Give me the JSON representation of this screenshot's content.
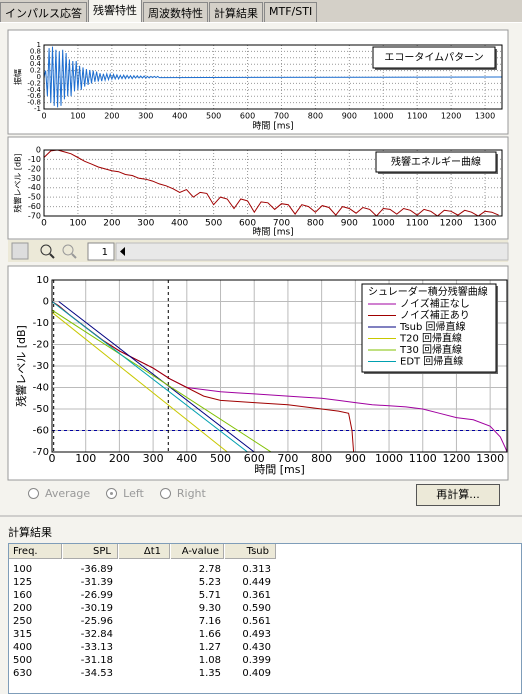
{
  "tabs": [
    "インパルス応答",
    "残響特性",
    "周波数特性",
    "計算結果",
    "MTF/STI"
  ],
  "active_tab": 1,
  "chart_data": [
    {
      "type": "line",
      "ylabel": "振幅",
      "xlabel": "時間 [ms]",
      "xlim": [
        0,
        1350
      ],
      "xticks": [
        0,
        100,
        200,
        300,
        400,
        500,
        600,
        700,
        800,
        900,
        1000,
        1100,
        1200,
        1300
      ],
      "ylim": [
        -1,
        1
      ],
      "yticks": [
        1,
        0.8,
        0.6,
        0.4,
        0.2,
        0,
        -0.2,
        -0.4,
        -0.6,
        -0.8,
        -1
      ],
      "grid": true,
      "series": [
        {
          "name": "エコータイムパターン",
          "color": "#1f6fd0",
          "x": [
            0,
            5,
            10,
            15,
            20,
            25,
            30,
            35,
            40,
            45,
            50,
            55,
            60,
            65,
            70,
            75,
            80,
            85,
            90,
            95,
            100,
            105,
            110,
            115,
            120,
            125,
            130,
            135,
            140,
            145,
            150,
            155,
            160,
            165,
            170,
            175,
            180,
            185,
            190,
            195,
            200,
            205,
            210,
            215,
            220,
            225,
            230,
            235,
            240,
            245,
            250,
            255,
            260,
            265,
            270,
            275,
            280,
            285,
            290,
            295,
            300,
            305,
            310,
            315,
            320,
            325,
            330,
            335,
            340,
            1350
          ],
          "values": [
            0,
            0.2,
            -0.6,
            0.9,
            -0.8,
            0.95,
            -0.9,
            0.85,
            -0.95,
            0.8,
            -0.9,
            0.85,
            -0.7,
            0.75,
            -0.6,
            0.55,
            -0.6,
            0.5,
            -0.45,
            0.5,
            -0.4,
            0.35,
            -0.4,
            0.3,
            -0.3,
            0.25,
            -0.25,
            0.22,
            -0.2,
            0.2,
            -0.15,
            0.17,
            -0.14,
            0.12,
            -0.13,
            0.1,
            -0.1,
            0.1,
            -0.08,
            0.09,
            -0.07,
            0.08,
            -0.06,
            0.07,
            -0.06,
            0.05,
            -0.05,
            0.06,
            -0.05,
            0.05,
            -0.04,
            0.04,
            -0.05,
            0.04,
            -0.03,
            0.04,
            -0.03,
            0.03,
            -0.03,
            0.03,
            -0.03,
            0.02,
            -0.03,
            0.02,
            -0.02,
            0.02,
            -0.02,
            0.02,
            -0.02,
            0
          ]
        }
      ]
    },
    {
      "type": "line",
      "ylabel": "残響レベル [dB]",
      "xlabel": "時間 [ms]",
      "xlim": [
        0,
        1350
      ],
      "xticks": [
        0,
        100,
        200,
        300,
        400,
        500,
        600,
        700,
        800,
        900,
        1000,
        1100,
        1200,
        1300
      ],
      "ylim": [
        -70,
        0
      ],
      "yticks": [
        0,
        -10,
        -20,
        -30,
        -40,
        -50,
        -60,
        -70
      ],
      "grid": true,
      "series": [
        {
          "name": "残響エネルギー曲線",
          "color": "#a00000",
          "x": [
            0,
            20,
            40,
            60,
            80,
            100,
            120,
            140,
            160,
            180,
            200,
            220,
            240,
            260,
            280,
            300,
            320,
            340,
            360,
            380,
            400,
            420,
            440,
            460,
            480,
            500,
            520,
            540,
            560,
            580,
            600,
            620,
            640,
            660,
            680,
            700,
            720,
            740,
            760,
            780,
            800,
            820,
            840,
            860,
            880,
            900,
            920,
            940,
            960,
            980,
            1000,
            1020,
            1040,
            1060,
            1080,
            1100,
            1120,
            1140,
            1160,
            1180,
            1200,
            1220,
            1240,
            1260,
            1280,
            1300,
            1320,
            1340
          ],
          "values": [
            -8,
            -1,
            0,
            -2,
            -4,
            -8,
            -12,
            -15,
            -18,
            -20,
            -22,
            -23,
            -26,
            -27,
            -30,
            -31,
            -33,
            -36,
            -38,
            -41,
            -45,
            -42,
            -50,
            -45,
            -46,
            -58,
            -50,
            -52,
            -62,
            -52,
            -54,
            -66,
            -55,
            -56,
            -63,
            -57,
            -58,
            -68,
            -58,
            -60,
            -66,
            -59,
            -61,
            -69,
            -60,
            -62,
            -67,
            -61,
            -63,
            -70,
            -62,
            -63,
            -68,
            -62,
            -64,
            -69,
            -63,
            -65,
            -70,
            -64,
            -65,
            -69,
            -64,
            -66,
            -70,
            -65,
            -66,
            -69
          ]
        }
      ]
    },
    {
      "type": "line",
      "ylabel": "残響レベル [dB]",
      "xlabel": "時間 [ms]",
      "legend_title": "シュレーダー積分残響曲線",
      "xlim": [
        0,
        1350
      ],
      "xticks": [
        0,
        100,
        200,
        300,
        400,
        500,
        600,
        700,
        800,
        900,
        1000,
        1100,
        1200,
        1300
      ],
      "ylim": [
        -70,
        10
      ],
      "yticks": [
        10,
        0,
        -10,
        -20,
        -30,
        -40,
        -50,
        -60,
        -70
      ],
      "grid": true,
      "hlines": [
        -60
      ],
      "vlines": [
        5,
        345
      ],
      "series": [
        {
          "name": "ノイズ補正なし",
          "color": "#a000a0",
          "x": [
            0,
            20,
            50,
            100,
            150,
            200,
            250,
            300,
            350,
            400,
            450,
            500,
            550,
            600,
            650,
            700,
            750,
            800,
            850,
            900,
            950,
            1000,
            1050,
            1100,
            1150,
            1200,
            1250,
            1300,
            1330,
            1345,
            1350
          ],
          "values": [
            0,
            -2,
            -6,
            -12,
            -18,
            -23,
            -27,
            -31,
            -36,
            -40,
            -41,
            -42,
            -42.5,
            -43,
            -43.5,
            -44,
            -44.5,
            -45,
            -46,
            -47,
            -48,
            -48.5,
            -49,
            -50,
            -52,
            -54,
            -55,
            -58,
            -63,
            -68,
            -70
          ]
        },
        {
          "name": "ノイズ補正あり",
          "color": "#a00000",
          "x": [
            0,
            20,
            50,
            100,
            150,
            200,
            250,
            300,
            350,
            400,
            450,
            500,
            550,
            600,
            700,
            800,
            850,
            880,
            890,
            895
          ],
          "values": [
            0,
            -2,
            -6,
            -12,
            -18,
            -23,
            -27,
            -31,
            -36,
            -40,
            -44,
            -46,
            -46.5,
            -47,
            -48,
            -50,
            -51,
            -52,
            -60,
            -70
          ]
        },
        {
          "name": "Tsub 回帰直線",
          "color": "#000080",
          "x": [
            20,
            600
          ],
          "values": [
            0,
            -70
          ]
        },
        {
          "name": "T20 回帰直線",
          "color": "#c8c800",
          "x": [
            0,
            520
          ],
          "values": [
            -5,
            -70
          ]
        },
        {
          "name": "T30 回帰直線",
          "color": "#80c000",
          "x": [
            0,
            650
          ],
          "values": [
            -4,
            -70
          ]
        },
        {
          "name": "EDT 回帰直線",
          "color": "#00a0b0",
          "x": [
            0,
            580
          ],
          "values": [
            0,
            -70
          ]
        }
      ]
    }
  ],
  "toolbar": {
    "page": "1"
  },
  "controls": {
    "radios": [
      "Average",
      "Left",
      "Right"
    ],
    "selected": 1,
    "button": "再計算..."
  },
  "results": {
    "title": "計算結果",
    "columns": [
      "Freq.",
      "SPL",
      "Δt1",
      "A-value",
      "Tsub"
    ],
    "rows": [
      [
        "100",
        "-36.89",
        null,
        "2.78",
        "0.313"
      ],
      [
        "125",
        "-31.39",
        null,
        "5.23",
        "0.449"
      ],
      [
        "160",
        "-26.99",
        null,
        "5.71",
        "0.361"
      ],
      [
        "200",
        "-30.19",
        null,
        "9.30",
        "0.590"
      ],
      [
        "250",
        "-25.96",
        null,
        "7.16",
        "0.561"
      ],
      [
        "315",
        "-32.84",
        null,
        "1.66",
        "0.493"
      ],
      [
        "400",
        "-33.13",
        null,
        "1.27",
        "0.430"
      ],
      [
        "500",
        "-31.18",
        null,
        "1.08",
        "0.399"
      ],
      [
        "630",
        "-34.53",
        null,
        "1.35",
        "0.409"
      ]
    ]
  }
}
